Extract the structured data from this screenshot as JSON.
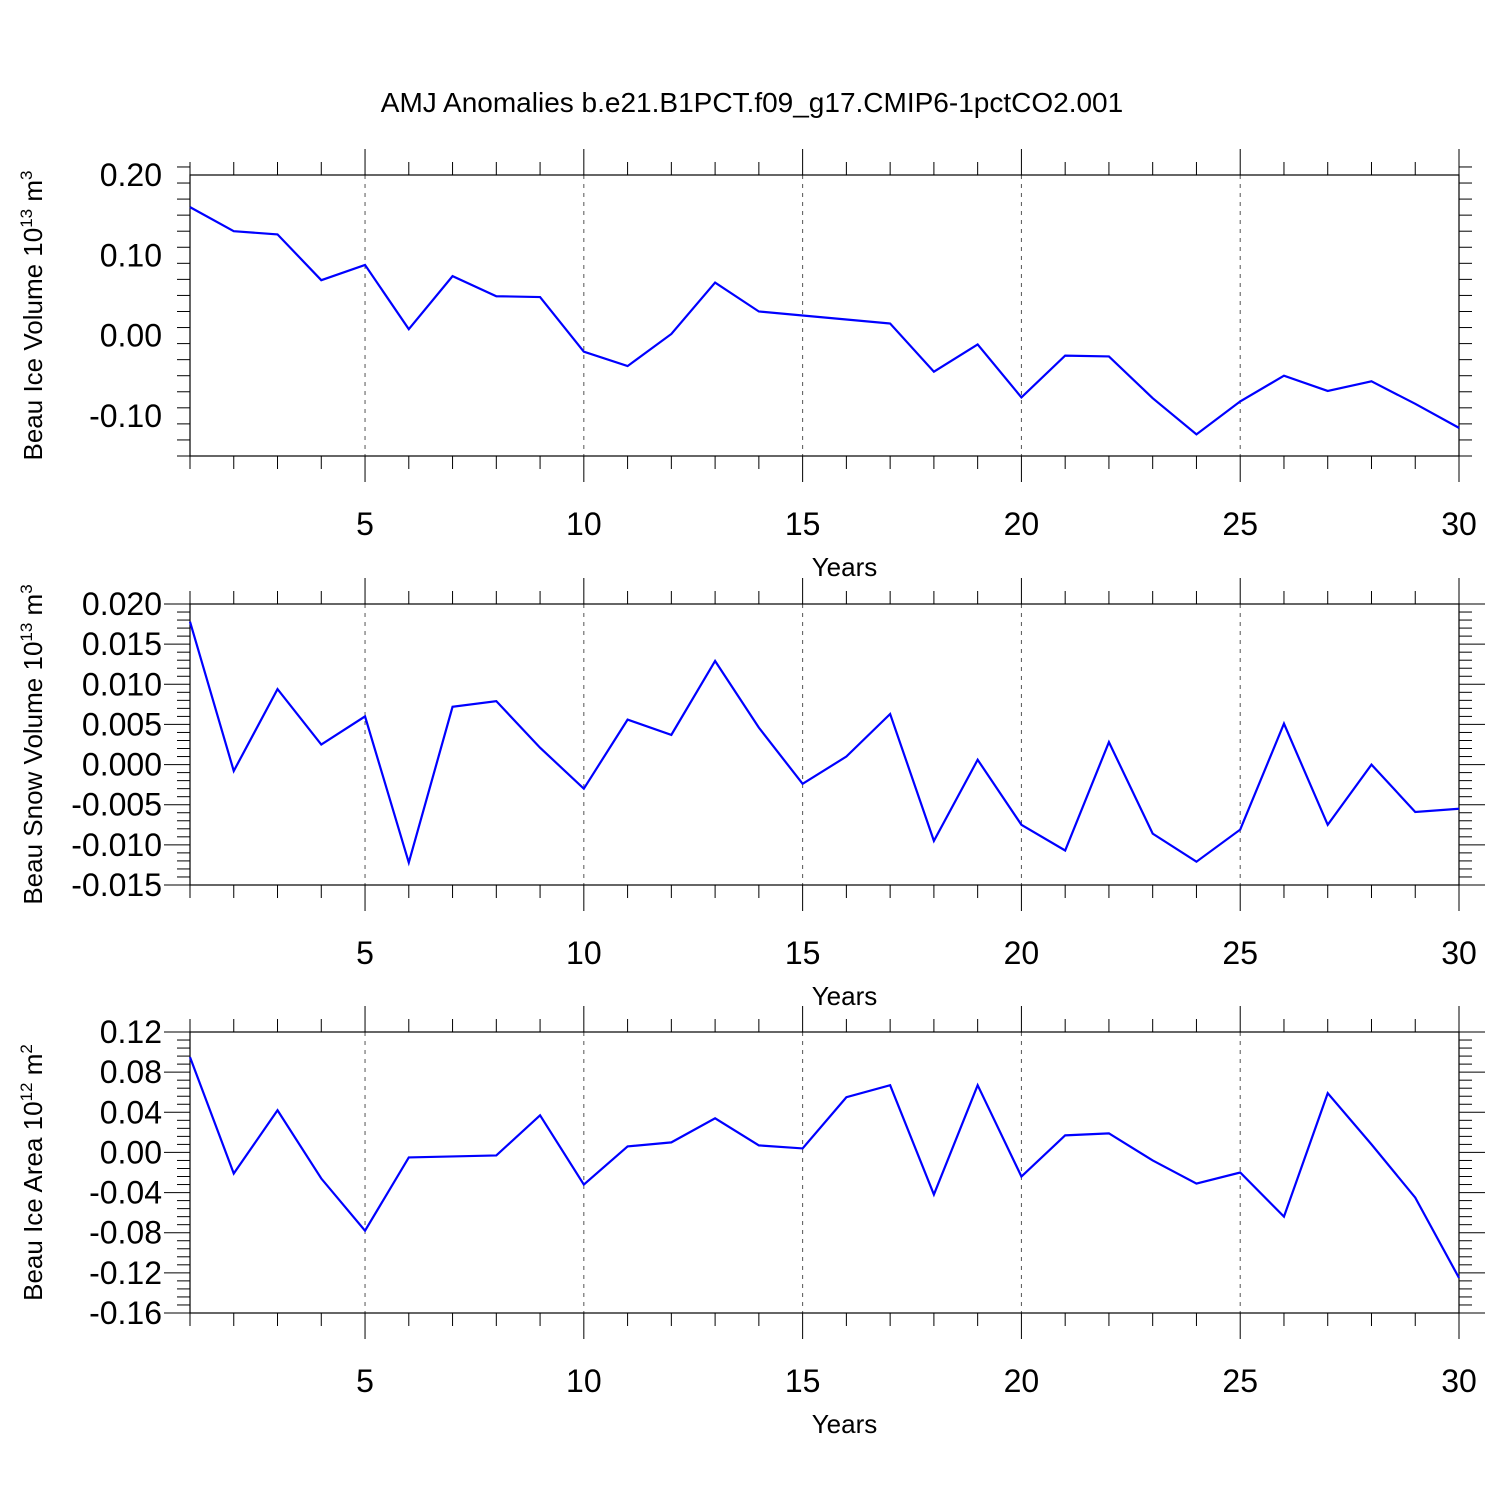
{
  "title": "AMJ Anomalies b.e21.B1PCT.f09_g17.CMIP6-1pctCO2.001",
  "chart_data": [
    {
      "type": "line",
      "ylabel": "Beau Ice Volume",
      "ylabel_unit": "10",
      "ylabel_unit_exp": "13",
      "ylabel_unit_dim": "m",
      "ylabel_unit_dim_exp": "3",
      "xlabel": "Years",
      "xlim": [
        1,
        30
      ],
      "ylim": [
        -0.15,
        0.2
      ],
      "xticks": [
        5,
        10,
        15,
        20,
        25,
        30
      ],
      "xtick_labels": [
        "5",
        "10",
        "15",
        "20",
        "25",
        "30"
      ],
      "yticks": [
        0.2,
        0.1,
        0.0,
        -0.1
      ],
      "ytick_labels": [
        "0.20",
        "0.10",
        "0.00",
        "-0.10"
      ],
      "color": "#0000ff",
      "grid": "vertical dashed at major x ticks",
      "x": [
        1,
        2,
        3,
        4,
        5,
        6,
        7,
        8,
        9,
        10,
        11,
        12,
        13,
        14,
        15,
        16,
        17,
        18,
        19,
        20,
        21,
        22,
        23,
        24,
        25,
        26,
        27,
        28,
        29,
        30
      ],
      "values": [
        0.16,
        0.13,
        0.126,
        0.069,
        0.088,
        0.008,
        0.074,
        0.049,
        0.048,
        -0.02,
        -0.038,
        0.002,
        0.066,
        0.03,
        0.025,
        0.02,
        0.015,
        -0.045,
        -0.011,
        -0.077,
        -0.025,
        -0.026,
        -0.078,
        -0.123,
        -0.082,
        -0.05,
        -0.069,
        -0.057,
        -0.085,
        -0.115
      ]
    },
    {
      "type": "line",
      "ylabel": "Beau Snow Volume",
      "ylabel_unit": "10",
      "ylabel_unit_exp": "13",
      "ylabel_unit_dim": "m",
      "ylabel_unit_dim_exp": "3",
      "xlabel": "Years",
      "xlim": [
        1,
        30
      ],
      "ylim": [
        -0.015,
        0.02
      ],
      "xticks": [
        5,
        10,
        15,
        20,
        25,
        30
      ],
      "xtick_labels": [
        "5",
        "10",
        "15",
        "20",
        "25",
        "30"
      ],
      "yticks": [
        0.02,
        0.015,
        0.01,
        0.005,
        0.0,
        -0.005,
        -0.01,
        -0.015
      ],
      "ytick_labels": [
        "0.020",
        "0.015",
        "0.010",
        "0.005",
        "0.000",
        "-0.005",
        "-0.010",
        "-0.015"
      ],
      "color": "#0000ff",
      "grid": "vertical dashed at major x ticks",
      "x": [
        1,
        2,
        3,
        4,
        5,
        6,
        7,
        8,
        9,
        10,
        11,
        12,
        13,
        14,
        15,
        16,
        17,
        18,
        19,
        20,
        21,
        22,
        23,
        24,
        25,
        26,
        27,
        28,
        29,
        30
      ],
      "values": [
        0.0178,
        -0.0008,
        0.0094,
        0.0025,
        0.006,
        -0.0122,
        0.0072,
        0.0079,
        0.0021,
        -0.003,
        0.0056,
        0.0037,
        0.0129,
        0.0046,
        -0.0024,
        0.001,
        0.0063,
        -0.0095,
        0.0006,
        -0.0075,
        -0.0107,
        0.0028,
        -0.0086,
        -0.0121,
        -0.0081,
        0.0051,
        -0.0075,
        -0.0,
        -0.0059,
        -0.0055
      ]
    },
    {
      "type": "line",
      "ylabel": "Beau Ice Area",
      "ylabel_unit": "10",
      "ylabel_unit_exp": "12",
      "ylabel_unit_dim": "m",
      "ylabel_unit_dim_exp": "2",
      "xlabel": "Years",
      "xlim": [
        1,
        30
      ],
      "ylim": [
        -0.16,
        0.12
      ],
      "xticks": [
        5,
        10,
        15,
        20,
        25,
        30
      ],
      "xtick_labels": [
        "5",
        "10",
        "15",
        "20",
        "25",
        "30"
      ],
      "yticks": [
        0.12,
        0.08,
        0.04,
        0.0,
        -0.04,
        -0.08,
        -0.12,
        -0.16
      ],
      "ytick_labels": [
        "0.12",
        "0.08",
        "0.04",
        "0.00",
        "-0.04",
        "-0.08",
        "-0.12",
        "-0.16"
      ],
      "color": "#0000ff",
      "grid": "vertical dashed at major x ticks",
      "x": [
        1,
        2,
        3,
        4,
        5,
        6,
        7,
        8,
        9,
        10,
        11,
        12,
        13,
        14,
        15,
        16,
        17,
        18,
        19,
        20,
        21,
        22,
        23,
        24,
        25,
        26,
        27,
        28,
        29,
        30
      ],
      "values": [
        0.095,
        -0.021,
        0.042,
        -0.026,
        -0.078,
        -0.005,
        -0.004,
        -0.003,
        0.037,
        -0.032,
        0.006,
        0.01,
        0.034,
        0.007,
        0.004,
        0.055,
        0.067,
        -0.042,
        0.067,
        -0.024,
        0.017,
        0.019,
        -0.008,
        -0.031,
        -0.02,
        -0.064,
        0.059,
        0.008,
        -0.045,
        -0.125
      ]
    }
  ]
}
